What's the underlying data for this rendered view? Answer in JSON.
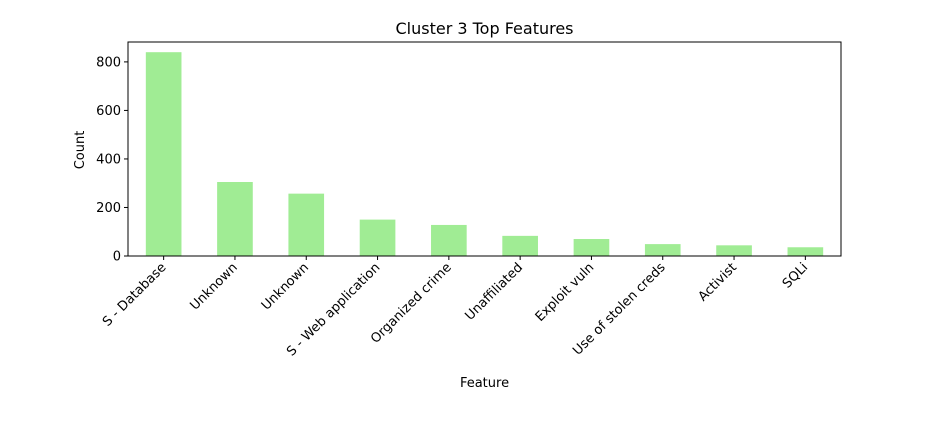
{
  "chart_data": {
    "type": "bar",
    "title": "Cluster 3 Top Features",
    "xlabel": "Feature",
    "ylabel": "Count",
    "categories": [
      "S - Database",
      "Unknown",
      "Unknown",
      "S - Web application",
      "Organized crime",
      "Unaffiliated",
      "Exploit vuln",
      "Use of stolen creds",
      "Activist",
      "SQLi"
    ],
    "values": [
      840,
      305,
      257,
      150,
      128,
      83,
      70,
      49,
      44,
      36
    ],
    "ylim": [
      0,
      882
    ],
    "yticks": [
      0,
      200,
      400,
      600,
      800
    ],
    "grid": false,
    "legend": "none",
    "bar_color": "#a0ec94"
  }
}
